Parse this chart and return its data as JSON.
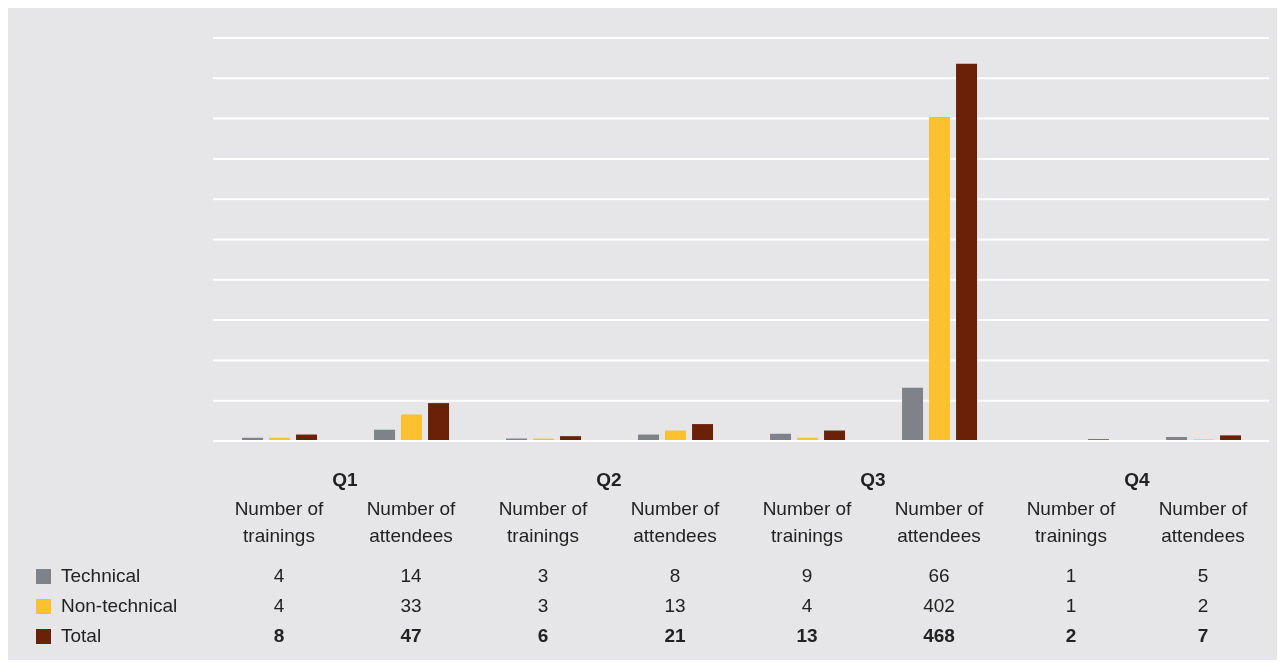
{
  "chart_data": {
    "type": "bar",
    "categories": [
      "Number of trainings",
      "Number of attendees",
      "Number of trainings",
      "Number of attendees",
      "Number of trainings",
      "Number of attendees",
      "Number of trainings",
      "Number of attendees"
    ],
    "annotations": [
      "Q1",
      "Q2",
      "Q3",
      "Q4"
    ],
    "series": [
      {
        "name": "Technical",
        "color": "#7f8389",
        "values": [
          4,
          14,
          3,
          8,
          9,
          66,
          1,
          5
        ]
      },
      {
        "name": "Non-technical",
        "color": "#fbc12e",
        "values": [
          4,
          33,
          3,
          13,
          4,
          402,
          1,
          2
        ]
      },
      {
        "name": "Total",
        "color": "#6b2008",
        "values": [
          8,
          47,
          6,
          21,
          13,
          468,
          2,
          7
        ]
      }
    ],
    "ylim": [
      0,
      500
    ],
    "yticks": [
      {
        "value": 0,
        "label": null
      },
      {
        "value": 50,
        "label": null
      },
      {
        "value": 100,
        "label": null
      },
      {
        "value": 150,
        "label": null
      },
      {
        "value": 200,
        "label": null
      },
      {
        "value": 250,
        "label": null
      },
      {
        "value": 300,
        "label": null
      },
      {
        "value": 350,
        "label": null
      },
      {
        "value": 400,
        "label": null
      },
      {
        "value": 450,
        "label": null
      },
      {
        "value": 500,
        "label": null
      }
    ],
    "tick_labels": "x",
    "grid": "y",
    "legend": "bottom left",
    "data_labels": true
  }
}
